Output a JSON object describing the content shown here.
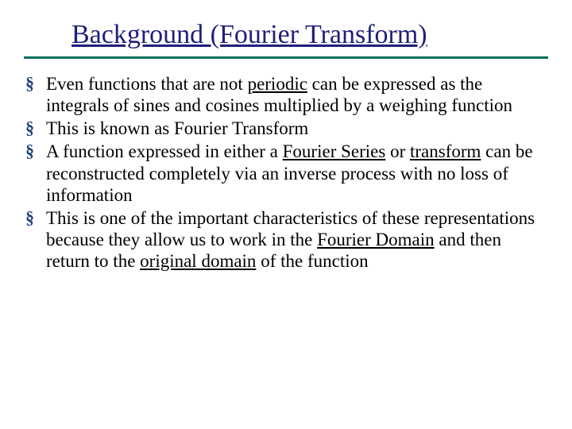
{
  "slide": {
    "title": "Background (Fourier Transform)",
    "title_color": "#1f1f7a",
    "rule_color": "#0f6f60",
    "bullet_glyph": "§",
    "bullet_color": "#1f3f7a",
    "body_fontsize": 23,
    "title_fontsize": 34,
    "background_color": "#ffffff",
    "bullets": [
      {
        "pre1": "Even functions that are not ",
        "u1": "periodic",
        "post1": " can be expressed as the integrals of sines and cosines multiplied by a weighing function"
      },
      {
        "text": "This is known as Fourier Transform"
      },
      {
        "pre1": "A function expressed in either a ",
        "u1": "Fourier Series",
        "mid1": " or ",
        "u2": "transform",
        "post1": " can be reconstructed completely via an inverse process with no loss of information"
      },
      {
        "pre1": "This is one of the important characteristics of these representations because they allow us to work in the ",
        "u1": "Fourier Domain",
        "mid1": " and then return to the ",
        "u2": "original domain",
        "post1": " of the function"
      }
    ]
  }
}
